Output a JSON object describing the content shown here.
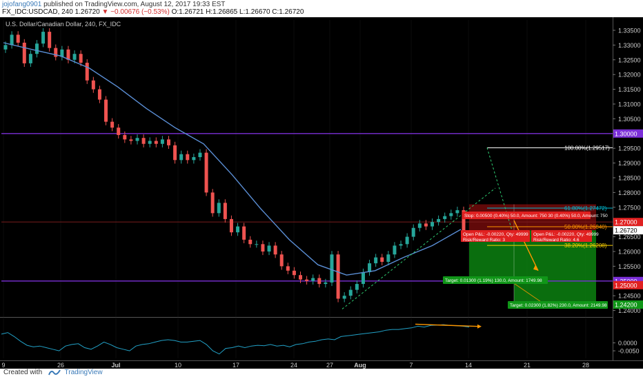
{
  "header": {
    "user": "jojofang0901",
    "published": "published on TradingView.com, August 12, 2017 19:33 EST",
    "symbol_line_prefix": "FX_IDC:USDCAD, 240",
    "last": "1.26720",
    "change": "▼ −0.00676 (−0.53%)",
    "ohlc": "O:1.26721 H:1.26865 L:1.26670 C:1.26720"
  },
  "footer": {
    "created_with": "Created with",
    "brand": "TradingView"
  },
  "colors": {
    "background": "#000000",
    "bull": "#26a69a",
    "bear": "#ef5350",
    "ma": "#5b8fd6",
    "level": "#7b2fd8",
    "fib": "#00bcd4",
    "fib50": "#ff9800",
    "fib38": "#ffd400",
    "target": "#109618",
    "stop": "#e02020",
    "oscillator": "#22a2c8",
    "divergence": "#ff9800",
    "grid": "#222222",
    "text": "#cccccc",
    "priceTag": "#ffffff"
  },
  "chart_data": {
    "type": "line",
    "title": "U.S. Dollar/Canadian Dollar, 240, FX_IDC",
    "y_ticks": [
      "1.33500",
      "1.33000",
      "1.32500",
      "1.32000",
      "1.31500",
      "1.31000",
      "1.30500",
      "1.29500",
      "1.29000",
      "1.28500",
      "1.28000",
      "1.27500",
      "1.26500",
      "1.26000",
      "1.25500",
      "1.24500",
      "1.24000"
    ],
    "x_ticks": [
      "9",
      "26",
      "Jul",
      "10",
      "17",
      "24",
      "27",
      "Aug",
      "7",
      "14",
      "21",
      "28"
    ],
    "ylim": [
      1.2385,
      1.3385
    ],
    "series": [
      {
        "values": [
          1.33,
          1.3335,
          1.3308,
          1.3238,
          1.327,
          1.3305,
          1.3345,
          1.329,
          1.326,
          1.3285,
          1.325,
          1.327,
          1.324,
          1.318,
          1.315,
          1.3115,
          1.304,
          1.302,
          1.2995,
          1.298,
          1.2975,
          1.2985,
          1.2965,
          1.2975,
          1.2965,
          1.298,
          1.296,
          1.291,
          1.293,
          1.291,
          1.292,
          1.2935,
          1.28,
          1.273,
          1.2765,
          1.271,
          1.2665,
          1.2685,
          1.264,
          1.2625,
          1.2625,
          1.26,
          1.262,
          1.259,
          1.255,
          1.2535,
          1.252,
          1.2505,
          1.25,
          1.251,
          1.249,
          1.2495,
          1.259,
          1.244,
          1.245,
          1.247,
          1.249,
          1.253,
          1.256,
          1.258,
          1.2565,
          1.259,
          1.262,
          1.2625,
          1.265,
          1.268,
          1.2695,
          1.2685,
          1.27,
          1.271,
          1.272,
          1.273,
          1.274,
          1.2672
        ]
      },
      {
        "values": [
          1.3308,
          1.3285,
          1.3263,
          1.3222,
          1.3158,
          1.3085,
          1.302,
          1.2965,
          1.286,
          1.2745,
          1.264,
          1.2555,
          1.252,
          1.2535,
          1.258,
          1.262,
          1.2675
        ]
      }
    ],
    "levels": [
      {
        "label": "1.30000",
        "value": 1.3,
        "color": "#7b2fd8"
      },
      {
        "label": "1.25000",
        "value": 1.25,
        "color": "#7b2fd8"
      }
    ],
    "price_tags": [
      {
        "label": "1.27000",
        "value": 1.27,
        "bg": "#e02020"
      },
      {
        "label": "1.26720",
        "value": 1.2672,
        "bg": "#ffffff"
      },
      {
        "label": "1.25000",
        "value": 1.2486,
        "bg": "#e02020"
      },
      {
        "label": "1.24200",
        "value": 1.242,
        "bg": "#109618"
      }
    ],
    "fib": [
      {
        "label": "100.00%(1.29517)",
        "value": 1.29517,
        "color": "#ffffff"
      },
      {
        "label": "61.80%(1.27472)",
        "value": 1.27472,
        "color": "#00bcd4"
      },
      {
        "label": "50.00%(1.26840)",
        "value": 1.2684,
        "color": "#ff9800"
      },
      {
        "label": "38.20%(1.26208)",
        "value": 1.26208,
        "color": "#ffd400"
      }
    ],
    "position_labels": {
      "stop": "Stop: 0.00500 (0.40%) 50.0, Amount: 750 30 (0.40%) 50.0, Amount: 750",
      "open1": "Open P&L: -0.00220, Qty: 49999",
      "rr1": "Risk/Reward Ratio: 3",
      "open2": "Open P&L: -0.00220, Qty: 49999",
      "rr2": "Risk/Reward Ratio: 4.6",
      "target1": "Target: 0.01300 (1.19%) 130.0, Amount: 1749.98",
      "target2": "Target: 0.02300 (1.82%) 230.0, Amount: 2149.98"
    },
    "oscillator": {
      "y_ticks": [
        "0.0000",
        "-0.0050"
      ],
      "values": [
        0.0055,
        0.0065,
        0.004,
        0.001,
        -0.0015,
        -0.0025,
        -0.002,
        -0.003,
        -0.004,
        -0.005,
        -0.002,
        -0.001,
        -0.0005,
        -0.003,
        -0.004,
        -0.002,
        0.0005,
        -0.001,
        -0.003,
        -0.004,
        -0.005,
        -0.002,
        -0.001,
        -0.0005,
        0.0005,
        0.0015,
        0.002,
        0.0015,
        0.0005,
        0.0005,
        0.001,
        0.0015,
        -0.001,
        -0.005,
        -0.007,
        -0.0035,
        -0.003,
        -0.002,
        -0.003,
        -0.002,
        -0.0015,
        -0.0018,
        -0.001,
        -0.002,
        -0.0015,
        -0.0025,
        -0.001,
        -0.0005,
        0.0005,
        0.001,
        0.002,
        0.0025,
        0.002,
        0.004,
        0.0045,
        0.005,
        0.0055,
        0.006,
        0.0065,
        0.007,
        0.008,
        0.0085,
        0.0085,
        0.009,
        0.0095,
        0.0105,
        0.01,
        0.011,
        0.0112,
        0.0115,
        0.011,
        0.0108,
        0.0105,
        0.01
      ]
    }
  }
}
